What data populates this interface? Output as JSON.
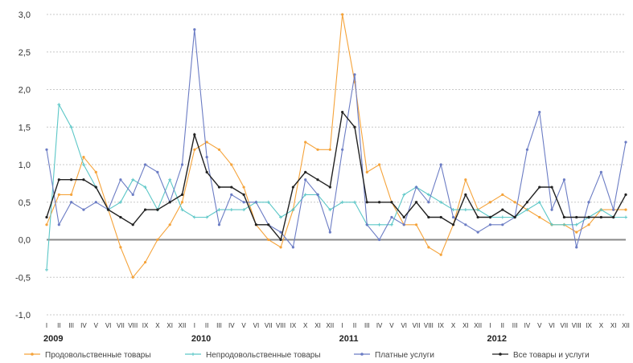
{
  "chart_data": {
    "type": "line",
    "ylim": [
      -1.0,
      3.0
    ],
    "yticks": [
      "3,0",
      "2,5",
      "2,0",
      "1,5",
      "1,0",
      "0,5",
      "0,0",
      "-0,5",
      "-1,0"
    ],
    "ytick_values": [
      3.0,
      2.5,
      2.0,
      1.5,
      1.0,
      0.5,
      0.0,
      -0.5,
      -1.0
    ],
    "grid": true,
    "legend": "bottom",
    "x": [
      "I",
      "II",
      "III",
      "IV",
      "V",
      "VI",
      "VII",
      "VIII",
      "IX",
      "X",
      "XI",
      "XII",
      "I",
      "II",
      "III",
      "IV",
      "V",
      "VI",
      "VII",
      "VIII",
      "IX",
      "X",
      "XI",
      "XII",
      "I",
      "II",
      "III",
      "IV",
      "V",
      "VI",
      "VII",
      "VIII",
      "IX",
      "X",
      "XI",
      "XII",
      "I",
      "II",
      "III",
      "IV",
      "V",
      "VI",
      "VII",
      "VIII",
      "IX",
      "X",
      "XI",
      "XII"
    ],
    "years": [
      "2009",
      "2010",
      "2011",
      "2012"
    ],
    "series": [
      {
        "name": "Продовольственные товары",
        "color": "#f5a33a",
        "marker": "dot",
        "values": [
          0.2,
          0.6,
          0.6,
          1.1,
          0.9,
          0.4,
          -0.1,
          -0.5,
          -0.3,
          0.0,
          0.2,
          0.5,
          1.2,
          1.3,
          1.2,
          1.0,
          0.7,
          0.2,
          0.0,
          -0.1,
          0.4,
          1.3,
          1.2,
          1.2,
          3.0,
          2.1,
          0.9,
          1.0,
          0.5,
          0.2,
          0.2,
          -0.1,
          -0.2,
          0.2,
          0.8,
          0.4,
          0.5,
          0.6,
          0.5,
          0.4,
          0.3,
          0.2,
          0.2,
          0.1,
          0.2,
          0.4,
          0.4,
          0.4
        ]
      },
      {
        "name": "Непродовольственные товары",
        "color": "#5cc7c7",
        "marker": "plus",
        "values": [
          -0.4,
          1.8,
          1.5,
          1.0,
          0.7,
          0.4,
          0.5,
          0.8,
          0.7,
          0.4,
          0.8,
          0.4,
          0.3,
          0.3,
          0.4,
          0.4,
          0.4,
          0.5,
          0.5,
          0.3,
          0.4,
          0.6,
          0.6,
          0.4,
          0.5,
          0.5,
          0.2,
          0.2,
          0.2,
          0.6,
          0.7,
          0.6,
          0.5,
          0.4,
          0.4,
          0.4,
          0.3,
          0.3,
          0.3,
          0.4,
          0.5,
          0.2,
          0.2,
          0.2,
          0.3,
          0.4,
          0.3,
          0.3
        ]
      },
      {
        "name": "Платные услуги",
        "color": "#6b7cc4",
        "marker": "dot",
        "values": [
          1.2,
          0.2,
          0.5,
          0.4,
          0.5,
          0.4,
          0.8,
          0.6,
          1.0,
          0.9,
          0.5,
          1.0,
          2.8,
          1.1,
          0.2,
          0.6,
          0.5,
          0.5,
          0.2,
          0.1,
          -0.1,
          0.8,
          0.6,
          0.1,
          1.2,
          2.2,
          0.2,
          0.0,
          0.3,
          0.2,
          0.7,
          0.5,
          1.0,
          0.3,
          0.2,
          0.1,
          0.2,
          0.2,
          0.3,
          1.2,
          1.7,
          0.4,
          0.8,
          -0.1,
          0.5,
          0.9,
          0.4,
          1.3
        ]
      },
      {
        "name": "Все товары и услуги",
        "color": "#222222",
        "marker": "dot",
        "values": [
          0.3,
          0.8,
          0.8,
          0.8,
          0.7,
          0.4,
          0.3,
          0.2,
          0.4,
          0.4,
          0.5,
          0.6,
          1.4,
          0.9,
          0.7,
          0.7,
          0.6,
          0.2,
          0.2,
          0.0,
          0.7,
          0.9,
          0.8,
          0.7,
          1.7,
          1.5,
          0.5,
          0.5,
          0.5,
          0.3,
          0.5,
          0.3,
          0.3,
          0.2,
          0.6,
          0.3,
          0.3,
          0.4,
          0.3,
          0.5,
          0.7,
          0.7,
          0.3,
          0.3,
          0.3,
          0.3,
          0.3,
          0.6
        ]
      }
    ]
  }
}
